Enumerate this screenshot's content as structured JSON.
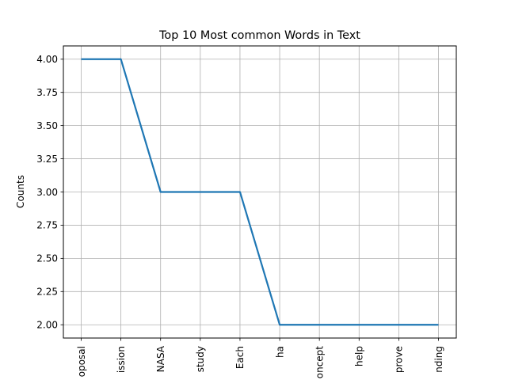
{
  "chart_data": {
    "type": "line",
    "title": "Top 10 Most common Words in Text",
    "xlabel": "",
    "ylabel": "Counts",
    "categories": [
      "proposal",
      "mission",
      "NASA",
      "study",
      "Each",
      "ha",
      "concept",
      "help",
      "improve",
      "funding"
    ],
    "tick_labels": [
      "oposal",
      "ission",
      "NASA",
      "study",
      "Each",
      "ha",
      "oncept",
      "help",
      "prove",
      "nding"
    ],
    "values": [
      4,
      4,
      3,
      3,
      3,
      2,
      2,
      2,
      2,
      2
    ],
    "ylim": [
      1.9,
      4.1
    ],
    "yticks": [
      2.0,
      2.25,
      2.5,
      2.75,
      3.0,
      3.25,
      3.5,
      3.75,
      4.0
    ],
    "ytick_labels": [
      "2.00",
      "2.25",
      "2.50",
      "2.75",
      "3.00",
      "3.25",
      "3.50",
      "3.75",
      "4.00"
    ],
    "grid": true,
    "line_color": "#1f77b4",
    "grid_color": "#b0b0b0"
  }
}
